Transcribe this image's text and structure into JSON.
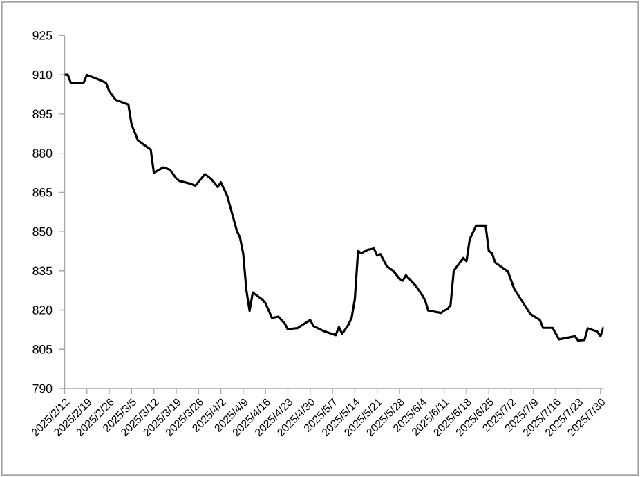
{
  "chart_data": {
    "type": "line",
    "x": [
      "2025-02-12",
      "2025-02-13",
      "2025-02-14",
      "2025-02-18",
      "2025-02-19",
      "2025-02-21",
      "2025-02-23",
      "2025-02-25",
      "2025-02-26",
      "2025-02-28",
      "2025-03-04",
      "2025-03-05",
      "2025-03-07",
      "2025-03-09",
      "2025-03-11",
      "2025-03-12",
      "2025-03-15",
      "2025-03-17",
      "2025-03-19",
      "2025-03-20",
      "2025-03-23",
      "2025-03-25",
      "2025-03-28",
      "2025-03-30",
      "2025-04-01",
      "2025-04-02",
      "2025-04-04",
      "2025-04-07",
      "2025-04-08",
      "2025-04-09",
      "2025-04-10",
      "2025-04-11",
      "2025-04-12",
      "2025-04-13",
      "2025-04-15",
      "2025-04-16",
      "2025-04-18",
      "2025-04-20",
      "2025-04-22",
      "2025-04-23",
      "2025-04-25",
      "2025-04-26",
      "2025-04-30",
      "2025-05-01",
      "2025-05-04",
      "2025-05-08",
      "2025-05-09",
      "2025-05-10",
      "2025-05-12",
      "2025-05-13",
      "2025-05-14",
      "2025-05-15",
      "2025-05-16",
      "2025-05-18",
      "2025-05-20",
      "2025-05-21",
      "2025-05-22",
      "2025-05-24",
      "2025-05-26",
      "2025-05-28",
      "2025-05-29",
      "2025-05-30",
      "2025-06-02",
      "2025-06-04",
      "2025-06-05",
      "2025-06-06",
      "2025-06-10",
      "2025-06-11",
      "2025-06-12",
      "2025-06-13",
      "2025-06-14",
      "2025-06-17",
      "2025-06-18",
      "2025-06-19",
      "2025-06-21",
      "2025-06-24",
      "2025-06-25",
      "2025-06-26",
      "2025-06-27",
      "2025-07-01",
      "2025-07-03",
      "2025-07-08",
      "2025-07-11",
      "2025-07-12",
      "2025-07-15",
      "2025-07-17",
      "2025-07-22",
      "2025-07-23",
      "2025-07-25",
      "2025-07-26",
      "2025-07-29",
      "2025-07-30",
      "2025-07-31"
    ],
    "values": [
      910,
      910,
      906.8,
      907,
      909.9,
      909,
      908,
      906.9,
      903.7,
      900.4,
      898.6,
      891,
      884.9,
      883.1,
      881.4,
      872.5,
      874.6,
      873.7,
      870.4,
      869.4,
      868.5,
      867.6,
      872,
      870.1,
      867.1,
      868.9,
      863.6,
      850.4,
      847.7,
      841.6,
      827.6,
      819.7,
      826.7,
      825.8,
      824,
      822.6,
      817,
      817.5,
      814.9,
      812.6,
      813,
      813.1,
      816.2,
      813.9,
      812.1,
      810.4,
      813.6,
      810.9,
      814.4,
      817.1,
      824.2,
      842.6,
      841.7,
      843,
      843.5,
      840.8,
      841.4,
      836.8,
      835,
      832,
      831.2,
      833.3,
      829.4,
      825.9,
      823.8,
      819.8,
      818.9,
      819.8,
      820.3,
      821.9,
      835,
      839.9,
      838.7,
      847,
      852.3,
      852.3,
      842.6,
      841.7,
      838.2,
      834.7,
      828,
      818.5,
      816.2,
      813.2,
      813.2,
      808.8,
      810,
      808.3,
      808.6,
      813,
      811.8,
      810,
      813.6
    ],
    "color": "#000000",
    "line_style": "solid",
    "marker": "none",
    "xlim": [
      "2025-02-12",
      "2025-07-31"
    ],
    "xticks": [
      {
        "value": "2025-02-12",
        "label": "2025/2/12"
      },
      {
        "value": "2025-02-19",
        "label": "2025/2/19"
      },
      {
        "value": "2025-02-26",
        "label": "2025/2/26"
      },
      {
        "value": "2025-03-05",
        "label": "2025/3/5"
      },
      {
        "value": "2025-03-12",
        "label": "2025/3/12"
      },
      {
        "value": "2025-03-19",
        "label": "2025/3/19"
      },
      {
        "value": "2025-03-26",
        "label": "2025/3/26"
      },
      {
        "value": "2025-04-02",
        "label": "2025/4/2"
      },
      {
        "value": "2025-04-09",
        "label": "2025/4/9"
      },
      {
        "value": "2025-04-16",
        "label": "2025/4/16"
      },
      {
        "value": "2025-04-23",
        "label": "2025/4/23"
      },
      {
        "value": "2025-04-30",
        "label": "2025/4/30"
      },
      {
        "value": "2025-05-07",
        "label": "2025/5/7"
      },
      {
        "value": "2025-05-14",
        "label": "2025/5/14"
      },
      {
        "value": "2025-05-21",
        "label": "2025/5/21"
      },
      {
        "value": "2025-05-28",
        "label": "2025/5/28"
      },
      {
        "value": "2025-06-04",
        "label": "2025/6/4"
      },
      {
        "value": "2025-06-11",
        "label": "2025/6/11"
      },
      {
        "value": "2025-06-18",
        "label": "2025/6/18"
      },
      {
        "value": "2025-06-25",
        "label": "2025/6/25"
      },
      {
        "value": "2025-07-02",
        "label": "2025/7/2"
      },
      {
        "value": "2025-07-09",
        "label": "2025/7/9"
      },
      {
        "value": "2025-07-16",
        "label": "2025/7/16"
      },
      {
        "value": "2025-07-23",
        "label": "2025/7/23"
      },
      {
        "value": "2025-07-30",
        "label": "2025/7/30"
      }
    ],
    "ylim": [
      790,
      925
    ],
    "yticks": [
      790,
      805,
      820,
      835,
      850,
      865,
      880,
      895,
      910,
      925
    ]
  }
}
